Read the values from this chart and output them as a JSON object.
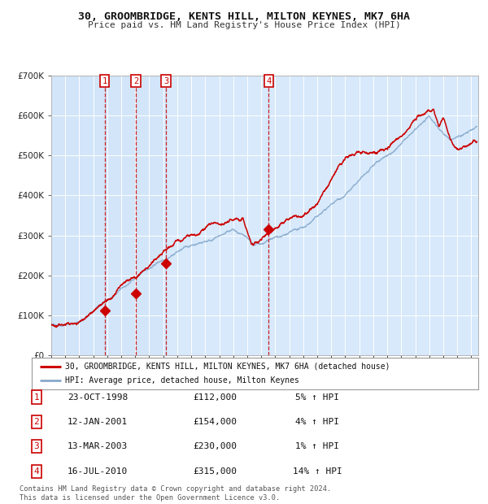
{
  "title": "30, GROOMBRIDGE, KENTS HILL, MILTON KEYNES, MK7 6HA",
  "subtitle": "Price paid vs. HM Land Registry's House Price Index (HPI)",
  "background_color": "#ffffff",
  "plot_bg_color": "#ddeeff",
  "grid_color": "#ffffff",
  "sale_line_color": "#cc0000",
  "hpi_line_color": "#88aacc",
  "sale_marker_color": "#cc0000",
  "vline_color": "#cc0000",
  "ylim": [
    0,
    700000
  ],
  "yticks": [
    0,
    100000,
    200000,
    300000,
    400000,
    500000,
    600000,
    700000
  ],
  "ytick_labels": [
    "£0",
    "£100K",
    "£200K",
    "£300K",
    "£400K",
    "£500K",
    "£600K",
    "£700K"
  ],
  "xmin": 1995.0,
  "xmax": 2025.5,
  "xticks": [
    1995,
    1996,
    1997,
    1998,
    1999,
    2000,
    2001,
    2002,
    2003,
    2004,
    2005,
    2006,
    2007,
    2008,
    2009,
    2010,
    2011,
    2012,
    2013,
    2014,
    2015,
    2016,
    2017,
    2018,
    2019,
    2020,
    2021,
    2022,
    2023,
    2024,
    2025
  ],
  "sales": [
    {
      "date": 1998.81,
      "price": 112000,
      "label": "1"
    },
    {
      "date": 2001.04,
      "price": 154000,
      "label": "2"
    },
    {
      "date": 2003.2,
      "price": 230000,
      "label": "3"
    },
    {
      "date": 2010.54,
      "price": 315000,
      "label": "4"
    }
  ],
  "legend_sale_label": "30, GROOMBRIDGE, KENTS HILL, MILTON KEYNES, MK7 6HA (detached house)",
  "legend_hpi_label": "HPI: Average price, detached house, Milton Keynes",
  "table_rows": [
    {
      "num": "1",
      "date": "23-OCT-1998",
      "price": "£112,000",
      "pct": "5% ↑ HPI"
    },
    {
      "num": "2",
      "date": "12-JAN-2001",
      "price": "£154,000",
      "pct": "4% ↑ HPI"
    },
    {
      "num": "3",
      "date": "13-MAR-2003",
      "price": "£230,000",
      "pct": "1% ↑ HPI"
    },
    {
      "num": "4",
      "date": "16-JUL-2010",
      "price": "£315,000",
      "pct": "14% ↑ HPI"
    }
  ],
  "footnote": "Contains HM Land Registry data © Crown copyright and database right 2024.\nThis data is licensed under the Open Government Licence v3.0."
}
